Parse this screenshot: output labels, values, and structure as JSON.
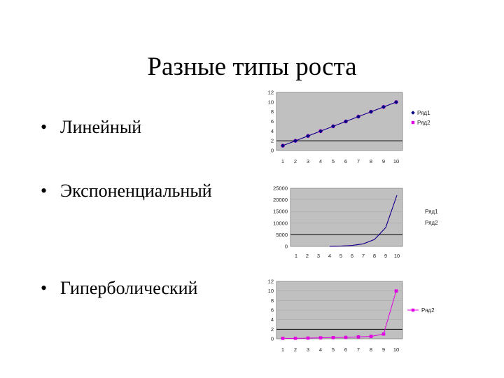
{
  "slide": {
    "title": "Разные типы роста",
    "bullet_symbol": "•",
    "bullets": [
      "Линейный",
      "Экспоненциальный",
      "Гиперболический"
    ]
  },
  "colors": {
    "plot_bg": "#c0c0c0",
    "series1": "#000080",
    "series2": "#e000e0",
    "axis": "#000000"
  },
  "chart_data": [
    {
      "type": "line",
      "x": [
        1,
        2,
        3,
        4,
        5,
        6,
        7,
        8,
        9,
        10
      ],
      "ylim": [
        0,
        12
      ],
      "yticks": [
        0,
        2,
        4,
        6,
        8,
        10,
        12
      ],
      "series": [
        {
          "name": "Ряд1",
          "marker": "diamond",
          "values": [
            1,
            2,
            3,
            4,
            5,
            6,
            7,
            8,
            9,
            10
          ]
        },
        {
          "name": "Ряд2",
          "marker": "square",
          "values": [
            1,
            2,
            3,
            4,
            5,
            6,
            7,
            8,
            9,
            10
          ]
        }
      ],
      "legend": "right",
      "grid": "none"
    },
    {
      "type": "line",
      "x": [
        1,
        2,
        3,
        4,
        5,
        6,
        7,
        8,
        9,
        10
      ],
      "ylim": [
        0,
        25000
      ],
      "yticks": [
        0,
        5000,
        10000,
        15000,
        20000,
        25000
      ],
      "series": [
        {
          "name": "Ряд1",
          "marker": "none",
          "values": [
            null,
            null,
            null,
            55,
            148,
            403,
            1097,
            2981,
            8103,
            22026
          ]
        },
        {
          "name": "Ряд2",
          "marker": "none",
          "values": [
            null,
            null,
            null,
            55,
            148,
            403,
            1097,
            2981,
            8103,
            22026
          ]
        }
      ],
      "legend": "right",
      "grid": "horizontal"
    },
    {
      "type": "line",
      "x": [
        1,
        2,
        3,
        4,
        5,
        6,
        7,
        8,
        9,
        10
      ],
      "ylim": [
        0,
        12
      ],
      "yticks": [
        0,
        2,
        4,
        6,
        8,
        10,
        12
      ],
      "series": [
        {
          "name": "Ряд2",
          "marker": "square",
          "values": [
            0.1,
            0.1,
            0.15,
            0.2,
            0.25,
            0.3,
            0.4,
            0.5,
            1,
            10
          ]
        }
      ],
      "legend": "right",
      "grid": "horizontal"
    }
  ]
}
